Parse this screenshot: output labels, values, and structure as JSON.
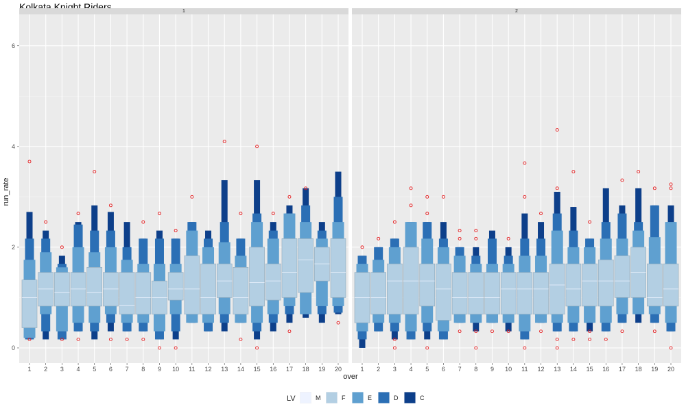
{
  "chart_data": {
    "type": "letter-value boxplot",
    "title": "Kolkata Knight Riders",
    "xlabel": "over",
    "ylabel": "run_rate",
    "ylim": [
      -0.3,
      6.5
    ],
    "yticks": [
      0,
      2,
      4,
      6
    ],
    "grid": true,
    "legend": {
      "title": "LV",
      "position": "bottom",
      "entries": [
        {
          "label": "M",
          "color": "#eef3ff"
        },
        {
          "label": "F",
          "color": "#b3cfe3"
        },
        {
          "label": "E",
          "color": "#5fa0d0"
        },
        {
          "label": "D",
          "color": "#2b6fb5"
        },
        {
          "label": "C",
          "color": "#0d3f8a"
        }
      ]
    },
    "outlier_color": "#e41a1c",
    "median_color": "#eef3ff",
    "panels": [
      {
        "strip": "1",
        "categories": [
          "1",
          "2",
          "3",
          "4",
          "5",
          "6",
          "7",
          "8",
          "9",
          "10",
          "11",
          "12",
          "13",
          "14",
          "15",
          "16",
          "17",
          "18",
          "19",
          "20"
        ],
        "boxes": [
          {
            "F": [
              0.4,
              1.35
            ],
            "E": [
              0.2,
              1.75
            ],
            "D": [
              0.17,
              2.17
            ],
            "C": [
              0.17,
              2.7
            ],
            "median": 1.0,
            "outliers": [
              0.17,
              3.7
            ]
          },
          {
            "F": [
              0.83,
              1.5
            ],
            "E": [
              0.67,
              1.9
            ],
            "D": [
              0.33,
              2.17
            ],
            "C": [
              0.17,
              2.33
            ],
            "median": 1.17,
            "outliers": [
              2.5
            ]
          },
          {
            "F": [
              0.83,
              1.5
            ],
            "E": [
              0.33,
              1.6
            ],
            "D": [
              0.17,
              1.67
            ],
            "C": [
              0.17,
              1.83
            ],
            "median": 1.1,
            "outliers": [
              0.17,
              2.0
            ]
          },
          {
            "F": [
              0.83,
              1.5
            ],
            "E": [
              0.5,
              2.0
            ],
            "D": [
              0.33,
              2.45
            ],
            "C": [
              0.33,
              2.5
            ],
            "median": 1.17,
            "outliers": [
              0.17,
              2.67
            ]
          },
          {
            "F": [
              0.83,
              1.6
            ],
            "E": [
              0.5,
              1.9
            ],
            "D": [
              0.33,
              2.33
            ],
            "C": [
              0.17,
              2.83
            ],
            "median": 1.1,
            "outliers": [
              3.5
            ]
          },
          {
            "F": [
              0.83,
              1.5
            ],
            "E": [
              0.67,
              2.0
            ],
            "D": [
              0.5,
              2.33
            ],
            "C": [
              0.33,
              2.7
            ],
            "median": 1.17,
            "outliers": [
              0.17,
              2.83
            ]
          },
          {
            "F": [
              0.67,
              1.5
            ],
            "E": [
              0.5,
              1.75
            ],
            "D": [
              0.33,
              2.0
            ],
            "C": [
              0.33,
              2.5
            ],
            "median": 0.85,
            "outliers": [
              0.17
            ]
          },
          {
            "F": [
              0.67,
              1.5
            ],
            "E": [
              0.5,
              1.67
            ],
            "D": [
              0.33,
              2.17
            ],
            "C": [
              0.33,
              2.17
            ],
            "median": 1.0,
            "outliers": [
              0.17,
              2.5
            ]
          },
          {
            "F": [
              0.67,
              1.33
            ],
            "E": [
              0.33,
              1.67
            ],
            "D": [
              0.17,
              2.17
            ],
            "C": [
              0.17,
              2.33
            ],
            "median": 1.0,
            "outliers": [
              0.0,
              2.67
            ]
          },
          {
            "F": [
              0.95,
              1.5
            ],
            "E": [
              0.67,
              1.67
            ],
            "D": [
              0.33,
              2.17
            ],
            "C": [
              0.17,
              2.17
            ],
            "median": 1.17,
            "outliers": [
              0.0,
              2.33
            ]
          },
          {
            "F": [
              0.67,
              1.83
            ],
            "E": [
              0.5,
              2.33
            ],
            "D": [
              0.5,
              2.5
            ],
            "C": [
              0.5,
              2.5
            ],
            "median": 1.17,
            "outliers": [
              3.0
            ]
          },
          {
            "F": [
              0.67,
              1.67
            ],
            "E": [
              0.5,
              2.0
            ],
            "D": [
              0.33,
              2.17
            ],
            "C": [
              0.33,
              2.33
            ],
            "median": 1.0,
            "outliers": []
          },
          {
            "F": [
              1.0,
              1.67
            ],
            "E": [
              0.67,
              2.1
            ],
            "D": [
              0.5,
              2.5
            ],
            "C": [
              0.33,
              3.33
            ],
            "median": 1.33,
            "outliers": [
              4.1
            ]
          },
          {
            "F": [
              0.67,
              1.6
            ],
            "E": [
              0.5,
              1.83
            ],
            "D": [
              0.5,
              2.17
            ],
            "C": [
              0.5,
              2.17
            ],
            "median": 1.0,
            "outliers": [
              0.17,
              2.67
            ]
          },
          {
            "F": [
              0.83,
              2.0
            ],
            "E": [
              0.5,
              2.5
            ],
            "D": [
              0.33,
              2.67
            ],
            "C": [
              0.17,
              3.33
            ],
            "median": 1.3,
            "outliers": [
              0.0,
              4.0
            ]
          },
          {
            "F": [
              0.95,
              1.67
            ],
            "E": [
              0.67,
              2.17
            ],
            "D": [
              0.5,
              2.33
            ],
            "C": [
              0.33,
              2.5
            ],
            "median": 1.33,
            "outliers": [
              2.67
            ]
          },
          {
            "F": [
              1.0,
              2.17
            ],
            "E": [
              0.83,
              2.67
            ],
            "D": [
              0.67,
              2.67
            ],
            "C": [
              0.5,
              2.83
            ],
            "median": 1.5,
            "outliers": [
              0.33,
              3.0
            ]
          },
          {
            "F": [
              1.1,
              2.17
            ],
            "E": [
              0.67,
              2.5
            ],
            "D": [
              0.67,
              2.83
            ],
            "C": [
              0.6,
              3.17
            ],
            "median": 1.75,
            "outliers": [
              3.17
            ]
          },
          {
            "F": [
              1.33,
              2.0
            ],
            "E": [
              0.83,
              2.17
            ],
            "D": [
              0.67,
              2.33
            ],
            "C": [
              0.5,
              2.5
            ],
            "median": 1.67,
            "outliers": []
          },
          {
            "F": [
              1.0,
              2.17
            ],
            "E": [
              0.83,
              2.5
            ],
            "D": [
              0.7,
              3.0
            ],
            "C": [
              0.67,
              3.5
            ],
            "median": 1.5,
            "outliers": [
              0.5
            ]
          }
        ]
      },
      {
        "strip": "2",
        "categories": [
          "1",
          "2",
          "3",
          "4",
          "5",
          "6",
          "7",
          "8",
          "9",
          "10",
          "11",
          "12",
          "13",
          "14",
          "15",
          "16",
          "17",
          "18",
          "19",
          "20"
        ],
        "boxes": [
          {
            "F": [
              0.5,
              1.5
            ],
            "E": [
              0.33,
              1.67
            ],
            "D": [
              0.17,
              1.83
            ],
            "C": [
              0.0,
              1.83
            ],
            "median": 1.0,
            "outliers": [
              2.0
            ]
          },
          {
            "F": [
              0.67,
              1.5
            ],
            "E": [
              0.5,
              1.75
            ],
            "D": [
              0.33,
              2.0
            ],
            "C": [
              0.33,
              2.0
            ],
            "median": 1.0,
            "outliers": [
              2.17
            ]
          },
          {
            "F": [
              0.67,
              1.67
            ],
            "E": [
              0.5,
              2.0
            ],
            "D": [
              0.33,
              2.17
            ],
            "C": [
              0.17,
              2.17
            ],
            "median": 1.33,
            "outliers": [
              0.0,
              0.17,
              2.5
            ]
          },
          {
            "F": [
              0.67,
              2.0
            ],
            "E": [
              0.33,
              2.5
            ],
            "D": [
              0.17,
              2.5
            ],
            "C": [
              0.17,
              2.5
            ],
            "median": 1.33,
            "outliers": [
              2.83,
              3.17
            ]
          },
          {
            "F": [
              0.83,
              1.67
            ],
            "E": [
              0.5,
              2.17
            ],
            "D": [
              0.33,
              2.5
            ],
            "C": [
              0.17,
              2.5
            ],
            "median": 1.33,
            "outliers": [
              0.0,
              2.67,
              3.0
            ]
          },
          {
            "F": [
              0.55,
              1.67
            ],
            "E": [
              0.33,
              2.0
            ],
            "D": [
              0.17,
              2.17
            ],
            "C": [
              0.17,
              2.5
            ],
            "median": 1.17,
            "outliers": [
              3.0
            ]
          },
          {
            "F": [
              0.67,
              1.5
            ],
            "E": [
              0.5,
              1.83
            ],
            "D": [
              0.5,
              2.0
            ],
            "C": [
              0.5,
              2.0
            ],
            "median": 1.0,
            "outliers": [
              0.33,
              2.17,
              2.33
            ]
          },
          {
            "F": [
              0.67,
              1.5
            ],
            "E": [
              0.5,
              1.67
            ],
            "D": [
              0.5,
              1.83
            ],
            "C": [
              0.33,
              2.0
            ],
            "median": 1.0,
            "outliers": [
              0.0,
              0.33,
              2.17,
              2.33
            ]
          },
          {
            "F": [
              0.67,
              1.5
            ],
            "E": [
              0.5,
              1.67
            ],
            "D": [
              0.5,
              2.17
            ],
            "C": [
              0.5,
              2.33
            ],
            "median": 1.0,
            "outliers": [
              0.33
            ]
          },
          {
            "F": [
              0.67,
              1.5
            ],
            "E": [
              0.5,
              1.67
            ],
            "D": [
              0.5,
              1.83
            ],
            "C": [
              0.33,
              2.0
            ],
            "median": 1.17,
            "outliers": [
              0.33,
              2.17
            ]
          },
          {
            "F": [
              0.67,
              1.5
            ],
            "E": [
              0.33,
              1.83
            ],
            "D": [
              0.17,
              2.17
            ],
            "C": [
              0.17,
              2.67
            ],
            "median": 1.17,
            "outliers": [
              0.0,
              3.0,
              3.67
            ]
          },
          {
            "F": [
              0.67,
              1.5
            ],
            "E": [
              0.5,
              1.83
            ],
            "D": [
              0.5,
              2.17
            ],
            "C": [
              0.5,
              2.5
            ],
            "median": 1.17,
            "outliers": [
              0.33,
              2.67
            ]
          },
          {
            "F": [
              0.67,
              1.67
            ],
            "E": [
              0.5,
              2.33
            ],
            "D": [
              0.33,
              2.67
            ],
            "C": [
              0.33,
              3.1
            ],
            "median": 1.25,
            "outliers": [
              0.0,
              0.17,
              3.17,
              4.33
            ]
          },
          {
            "F": [
              0.83,
              1.67
            ],
            "E": [
              0.5,
              2.0
            ],
            "D": [
              0.33,
              2.33
            ],
            "C": [
              0.33,
              2.8
            ],
            "median": 1.17,
            "outliers": [
              0.17,
              3.5
            ]
          },
          {
            "F": [
              0.83,
              1.67
            ],
            "E": [
              0.5,
              2.0
            ],
            "D": [
              0.5,
              2.17
            ],
            "C": [
              0.33,
              2.17
            ],
            "median": 1.33,
            "outliers": [
              0.17,
              0.33,
              2.5
            ]
          },
          {
            "F": [
              0.83,
              1.75
            ],
            "E": [
              0.5,
              2.17
            ],
            "D": [
              0.33,
              2.5
            ],
            "C": [
              0.33,
              3.17
            ],
            "median": 1.33,
            "outliers": [
              0.17
            ]
          },
          {
            "F": [
              1.0,
              1.83
            ],
            "E": [
              0.67,
              2.17
            ],
            "D": [
              0.5,
              2.67
            ],
            "C": [
              0.5,
              2.83
            ],
            "median": 1.33,
            "outliers": [
              0.33,
              3.33
            ]
          },
          {
            "F": [
              1.0,
              2.0
            ],
            "E": [
              0.67,
              2.33
            ],
            "D": [
              0.67,
              2.5
            ],
            "C": [
              0.5,
              3.17
            ],
            "median": 1.5,
            "outliers": [
              3.5
            ]
          },
          {
            "F": [
              0.83,
              1.67
            ],
            "E": [
              0.67,
              2.2
            ],
            "D": [
              0.5,
              2.83
            ],
            "C": [
              0.5,
              2.83
            ],
            "median": 1.0,
            "outliers": [
              0.33,
              3.17
            ]
          },
          {
            "F": [
              0.83,
              1.67
            ],
            "E": [
              0.5,
              2.5
            ],
            "D": [
              0.33,
              2.5
            ],
            "C": [
              0.33,
              2.83
            ],
            "median": 1.17,
            "outliers": [
              0.0,
              3.17,
              3.25
            ]
          }
        ]
      }
    ]
  }
}
